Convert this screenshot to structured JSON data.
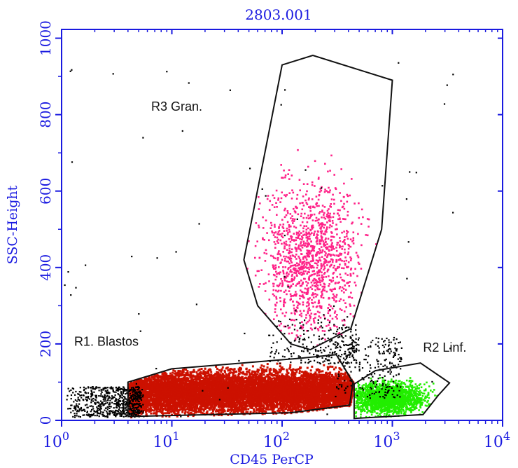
{
  "chart_data": {
    "type": "scatter",
    "title": "2803.001",
    "xlabel": "CD45 PerCP",
    "ylabel": "SSC-Height",
    "x_scale": "log",
    "xlim": [
      1,
      10000
    ],
    "ylim": [
      0,
      1023
    ],
    "x_ticks": [
      {
        "value": 1,
        "base": "10",
        "exp": "0"
      },
      {
        "value": 10,
        "base": "10",
        "exp": "1"
      },
      {
        "value": 100,
        "base": "10",
        "exp": "2"
      },
      {
        "value": 1000,
        "base": "10",
        "exp": "3"
      },
      {
        "value": 10000,
        "base": "10",
        "exp": "4"
      }
    ],
    "y_ticks": [
      {
        "value": 0,
        "label": "0"
      },
      {
        "value": 200,
        "label": "200"
      },
      {
        "value": 400,
        "label": "400"
      },
      {
        "value": 600,
        "label": "600"
      },
      {
        "value": 800,
        "label": "800"
      },
      {
        "value": 1000,
        "label": "1000"
      }
    ],
    "grid": false,
    "colors": {
      "axis": "#1a1ae0",
      "R1": "#cc1100",
      "R2": "#22ee00",
      "R3": "#ff2288",
      "ungated": "#000000"
    },
    "gates": [
      {
        "id": "R3",
        "label": "R3 Gran.",
        "color": "#ff2288",
        "polygon": [
          [
            100,
            930
          ],
          [
            190,
            955
          ],
          [
            1000,
            890
          ],
          [
            800,
            500
          ],
          [
            420,
            240
          ],
          [
            180,
            185
          ],
          [
            120,
            200
          ],
          [
            60,
            300
          ],
          [
            45,
            420
          ],
          [
            100,
            930
          ]
        ],
        "cluster": {
          "center_x": 180,
          "center_y": 420,
          "spread_y": 100,
          "count": 1300
        }
      },
      {
        "id": "R1",
        "label": "R1. Blastos",
        "color": "#cc1100",
        "polygon": [
          [
            4,
            100
          ],
          [
            10,
            135
          ],
          [
            140,
            162
          ],
          [
            310,
            172
          ],
          [
            440,
            100
          ],
          [
            410,
            40
          ],
          [
            120,
            20
          ],
          [
            4,
            10
          ],
          [
            4,
            100
          ]
        ],
        "cluster": {
          "center_x": 50,
          "center_y": 75,
          "spread_y": 25,
          "count": 9000
        }
      },
      {
        "id": "R2",
        "label": "R2 Linf.",
        "color": "#22ee00",
        "polygon": [
          [
            450,
            95
          ],
          [
            700,
            130
          ],
          [
            1800,
            150
          ],
          [
            3300,
            98
          ],
          [
            2600,
            65
          ],
          [
            1900,
            15
          ],
          [
            450,
            5
          ],
          [
            450,
            95
          ]
        ],
        "cluster": {
          "center_x": 900,
          "center_y": 60,
          "spread_y": 20,
          "count": 1800
        }
      }
    ]
  }
}
